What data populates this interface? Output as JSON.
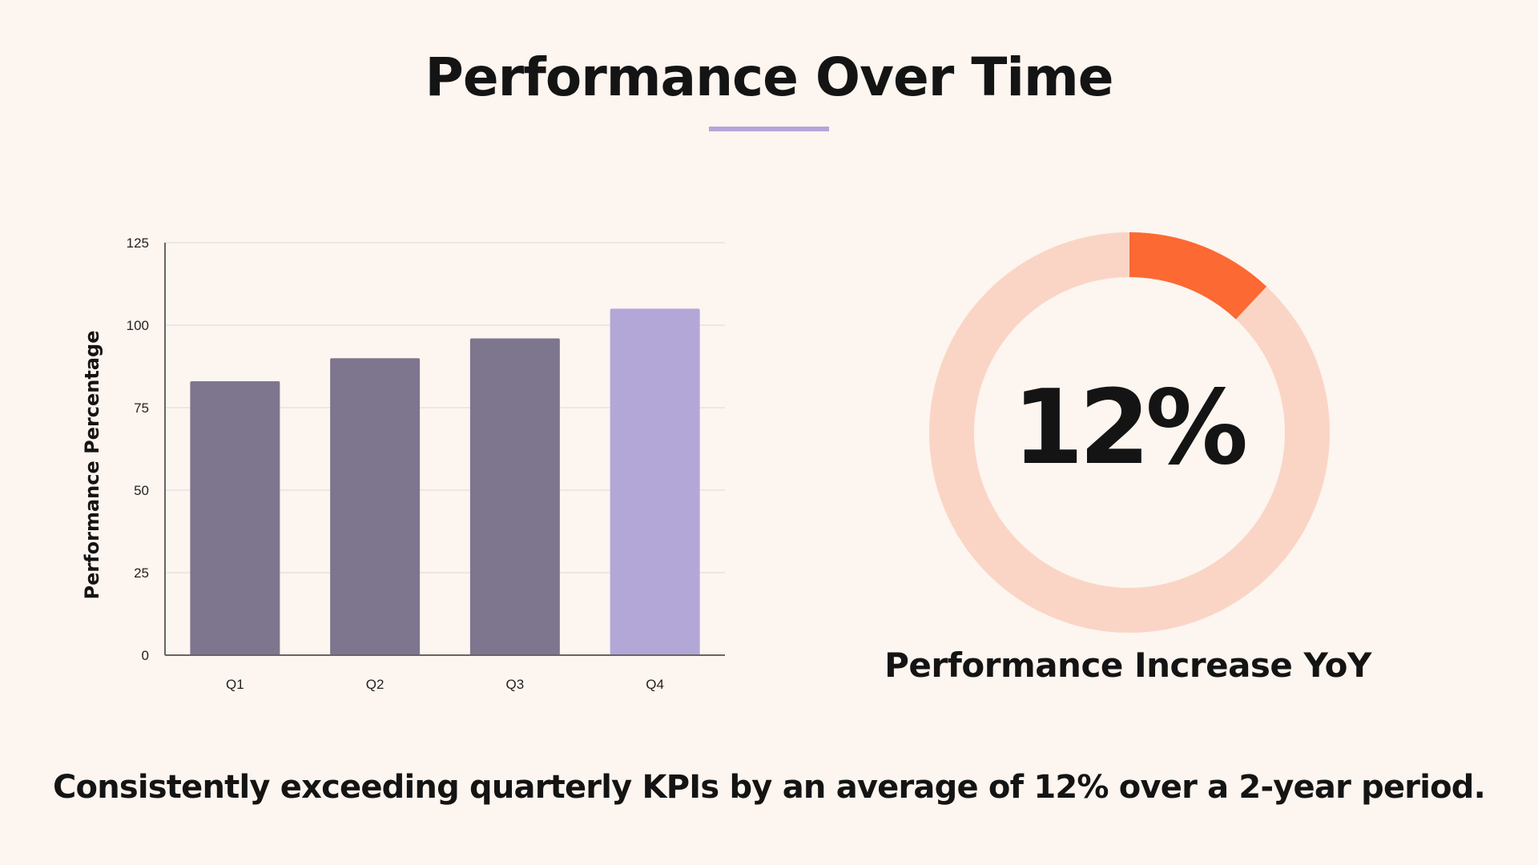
{
  "slide": {
    "title": "Performance Over Time",
    "caption": "Consistently exceeding quarterly KPIs by an average of 12% over a 2-year period.",
    "accent_color": "#b4a6d8"
  },
  "chart_data": [
    {
      "type": "bar",
      "categories": [
        "Q1",
        "Q2",
        "Q3",
        "Q4"
      ],
      "values": [
        83,
        90,
        96,
        105
      ],
      "title": "",
      "xlabel": "",
      "ylabel": "Performance Percentage",
      "ylim": [
        0,
        125
      ],
      "yticks": [
        0,
        25,
        50,
        75,
        100,
        125
      ],
      "grid": true,
      "bar_colors": [
        "#7e768f",
        "#7e768f",
        "#7e768f",
        "#b3a7d8"
      ]
    },
    {
      "type": "pie",
      "variant": "donut",
      "value_percent": 12,
      "center_label": "12%",
      "label": "Performance Increase YoY",
      "highlight_color": "#fc6933",
      "track_color": "#fad5c5"
    }
  ]
}
